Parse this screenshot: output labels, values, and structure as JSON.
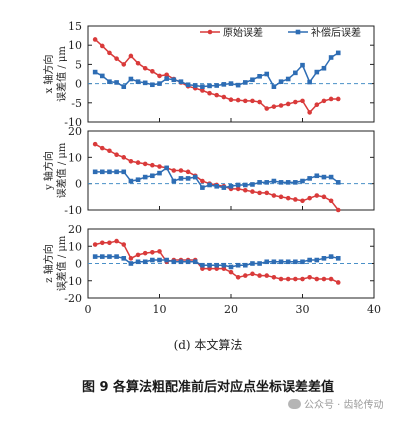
{
  "chart_data": [
    {
      "type": "line",
      "ylabel_lines": [
        "x 轴方向",
        "误差值 / μm"
      ],
      "ylim": [
        -10,
        15
      ],
      "yticks": [
        -10,
        -5,
        0,
        5,
        10,
        15
      ],
      "xlim": [
        0,
        40
      ],
      "legend": {
        "placement": "top-right"
      },
      "reference_line": 0,
      "x": [
        1,
        2,
        3,
        4,
        5,
        6,
        7,
        8,
        9,
        10,
        11,
        12,
        13,
        14,
        15,
        16,
        17,
        18,
        19,
        20,
        21,
        22,
        23,
        24,
        25,
        26,
        27,
        28,
        29,
        30,
        31,
        32,
        33,
        34,
        35
      ],
      "series": [
        {
          "name": "原始误差",
          "color": "#d93a3a",
          "marker": "circle",
          "values": [
            11.5,
            9.8,
            8,
            6.5,
            5,
            7.2,
            5.3,
            4,
            3.2,
            2,
            2.3,
            1.2,
            0.3,
            -0.7,
            -1.2,
            -1.8,
            -2.5,
            -3,
            -3.5,
            -4.2,
            -4.3,
            -4.5,
            -4.5,
            -4.8,
            -6.5,
            -6,
            -5.7,
            -5.3,
            -4.8,
            -4.5,
            -7.5,
            -5.5,
            -4.5,
            -4,
            -4
          ]
        },
        {
          "name": "补偿后误差",
          "color": "#2e6db4",
          "marker": "square",
          "values": [
            3,
            2,
            0.5,
            0.3,
            -0.8,
            1.2,
            0.5,
            0.2,
            -0.3,
            0,
            1.3,
            1,
            0.5,
            -0.3,
            -0.5,
            -0.8,
            -0.6,
            -0.5,
            -0.2,
            0,
            -0.4,
            0.3,
            1,
            1.9,
            2.5,
            -0.8,
            0.5,
            1.2,
            2.8,
            4.8,
            0.4,
            3,
            4,
            6.8,
            8
          ]
        }
      ]
    },
    {
      "type": "line",
      "ylabel_lines": [
        "y 轴方向",
        "误差值 / μm"
      ],
      "ylim": [
        -10,
        20
      ],
      "yticks": [
        -10,
        0,
        10,
        20
      ],
      "xlim": [
        0,
        40
      ],
      "reference_line": 0,
      "x": [
        1,
        2,
        3,
        4,
        5,
        6,
        7,
        8,
        9,
        10,
        11,
        12,
        13,
        14,
        15,
        16,
        17,
        18,
        19,
        20,
        21,
        22,
        23,
        24,
        25,
        26,
        27,
        28,
        29,
        30,
        31,
        32,
        33,
        34,
        35
      ],
      "series": [
        {
          "name": "原始误差",
          "color": "#d93a3a",
          "marker": "circle",
          "values": [
            15,
            13.5,
            12.5,
            11,
            10,
            8.5,
            8,
            7.5,
            7,
            6.5,
            6,
            5,
            5,
            4.5,
            3,
            1,
            0,
            -0.5,
            -1,
            -2,
            -2,
            -2.5,
            -3,
            -3.5,
            -3.5,
            -4.5,
            -5,
            -5.5,
            -6,
            -6.5,
            -5.5,
            -4.5,
            -5,
            -6.5,
            -10
          ]
        },
        {
          "name": "补偿后误差",
          "color": "#2e6db4",
          "marker": "square",
          "values": [
            4.5,
            4.5,
            4.5,
            4.5,
            4.5,
            1,
            1.5,
            2.5,
            3,
            4,
            6,
            1,
            2,
            2,
            2.5,
            -1.5,
            -0.5,
            -1,
            -1.5,
            -1,
            -0.5,
            -0.5,
            -0.3,
            0.5,
            0.5,
            1,
            0.5,
            0.5,
            0.5,
            1,
            2,
            3,
            2.5,
            2.5,
            0.5
          ]
        }
      ]
    },
    {
      "type": "line",
      "ylabel_lines": [
        "z 轴方向",
        "误差值 / μm"
      ],
      "ylim": [
        -20,
        20
      ],
      "yticks": [
        -20,
        -10,
        0,
        10,
        20
      ],
      "xlim": [
        0,
        40
      ],
      "xticks": [
        0,
        10,
        20,
        30,
        40
      ],
      "reference_line": 0,
      "x": [
        1,
        2,
        3,
        4,
        5,
        6,
        7,
        8,
        9,
        10,
        11,
        12,
        13,
        14,
        15,
        16,
        17,
        18,
        19,
        20,
        21,
        22,
        23,
        24,
        25,
        26,
        27,
        28,
        29,
        30,
        31,
        32,
        33,
        34,
        35
      ],
      "series": [
        {
          "name": "原始误差",
          "color": "#d93a3a",
          "marker": "circle",
          "values": [
            11,
            12,
            12,
            13,
            11,
            3,
            5,
            6,
            6.5,
            7,
            1,
            2,
            2,
            2,
            2,
            -3,
            -3,
            -3,
            -3,
            -5,
            -8,
            -7,
            -6,
            -7,
            -7,
            -8,
            -9,
            -9,
            -9,
            -9,
            -8,
            -9,
            -9,
            -9,
            -11
          ]
        },
        {
          "name": "补偿后误差",
          "color": "#2e6db4",
          "marker": "square",
          "values": [
            4,
            4,
            4,
            4,
            3,
            0,
            1,
            1,
            2,
            2,
            2,
            1,
            1,
            1,
            1,
            -1,
            -1,
            -1,
            -1,
            -2,
            -1,
            -1,
            0,
            0,
            1,
            1,
            1,
            1,
            1,
            1,
            2,
            2,
            3,
            4,
            3
          ]
        }
      ]
    }
  ],
  "sub_caption": "(d)  本文算法",
  "figure_caption": "图 9    各算法粗配准前后对应点坐标误差差值",
  "watermark": "公众号 · 齿轮传动"
}
